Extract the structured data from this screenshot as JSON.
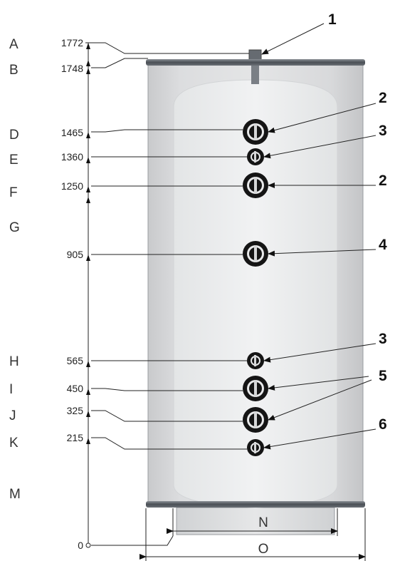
{
  "markers": [
    {
      "letter": "A",
      "value": "1772",
      "callout": "1"
    },
    {
      "letter": "B",
      "value": "1748",
      "callout": ""
    },
    {
      "letter": "D",
      "value": "1465",
      "callout": "2"
    },
    {
      "letter": "E",
      "value": "1360",
      "callout": "3"
    },
    {
      "letter": "F",
      "value": "1250",
      "callout": "2"
    },
    {
      "letter": "G",
      "value": "",
      "callout": ""
    },
    {
      "letter": "",
      "value": "905",
      "callout": "4"
    },
    {
      "letter": "H",
      "value": "565",
      "callout": "3"
    },
    {
      "letter": "I",
      "value": "450",
      "callout": "5"
    },
    {
      "letter": "J",
      "value": "325",
      "callout": ""
    },
    {
      "letter": "K",
      "value": "215",
      "callout": "6"
    },
    {
      "letter": "M",
      "value": "0",
      "callout": ""
    }
  ],
  "width_labels": {
    "inner": "N",
    "outer": "O"
  },
  "colors": {
    "tank_body": "#dfe0e1",
    "tank_inner": "#eef0f1",
    "band": "#555a60",
    "port_ring": "#111111"
  }
}
